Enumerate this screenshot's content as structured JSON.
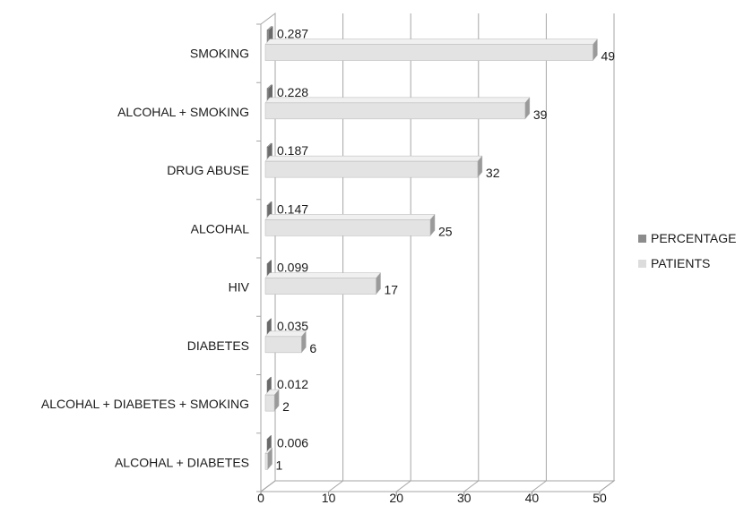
{
  "chart_data": {
    "type": "bar",
    "orientation": "horizontal",
    "style": "3d-clustered",
    "categories": [
      "SMOKING",
      "ALCOHAL + SMOKING",
      "DRUG ABUSE",
      "ALCOHAL",
      "HIV",
      "DIABETES",
      "ALCOHAL  + DIABETES + SMOKING",
      "ALCOHAL  + DIABETES"
    ],
    "series": [
      {
        "name": "PERCENTAGE",
        "color": "#8c8c8c",
        "values": [
          0.287,
          0.228,
          0.187,
          0.147,
          0.099,
          0.035,
          0.012,
          0.006
        ],
        "labels": [
          "0.287",
          "0.228",
          "0.187",
          "0.147",
          "0.099",
          "0.035",
          "0.012",
          "0.006"
        ]
      },
      {
        "name": "PATIENTS",
        "color": "#dcdcdc",
        "values": [
          49,
          39,
          32,
          25,
          17,
          6,
          2,
          1
        ],
        "labels": [
          "49",
          "39",
          "32",
          "25",
          "17",
          "6",
          "2",
          "1"
        ]
      }
    ],
    "x_ticks": [
      "0",
      "10",
      "20",
      "30",
      "40",
      "50"
    ],
    "xlim": [
      0,
      50
    ],
    "xlabel": "",
    "ylabel": "",
    "title": "",
    "grid": true,
    "legend_position": "right"
  }
}
